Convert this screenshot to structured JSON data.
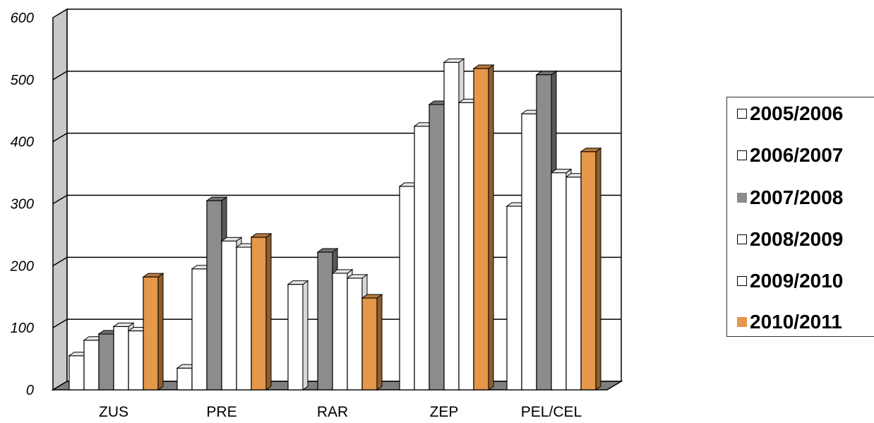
{
  "chart_data": {
    "type": "bar",
    "categories": [
      "ZUS",
      "PRE",
      "RAR",
      "ZEP",
      "PEL/CEL"
    ],
    "series": [
      {
        "name": "2005/2006",
        "values": [
          55,
          35,
          170,
          328,
          296
        ]
      },
      {
        "name": "2006/2007",
        "values": [
          80,
          195,
          0,
          425,
          445
        ]
      },
      {
        "name": "2007/2008",
        "values": [
          90,
          305,
          222,
          460,
          508
        ]
      },
      {
        "name": "2008/2009",
        "values": [
          102,
          240,
          188,
          528,
          350
        ]
      },
      {
        "name": "2009/2010",
        "values": [
          95,
          230,
          180,
          463,
          343
        ]
      },
      {
        "name": "2010/2011",
        "values": [
          182,
          246,
          148,
          518,
          384
        ]
      }
    ],
    "colors": [
      "#ffffff",
      "#ffffff",
      "#8c8c8c",
      "#ffffff",
      "#ffffff",
      "#e5974a"
    ],
    "ylim": [
      0,
      600
    ],
    "yticks": [
      "0",
      "100",
      "200",
      "300",
      "400",
      "500",
      "600"
    ],
    "grid": true,
    "legend": "right"
  }
}
